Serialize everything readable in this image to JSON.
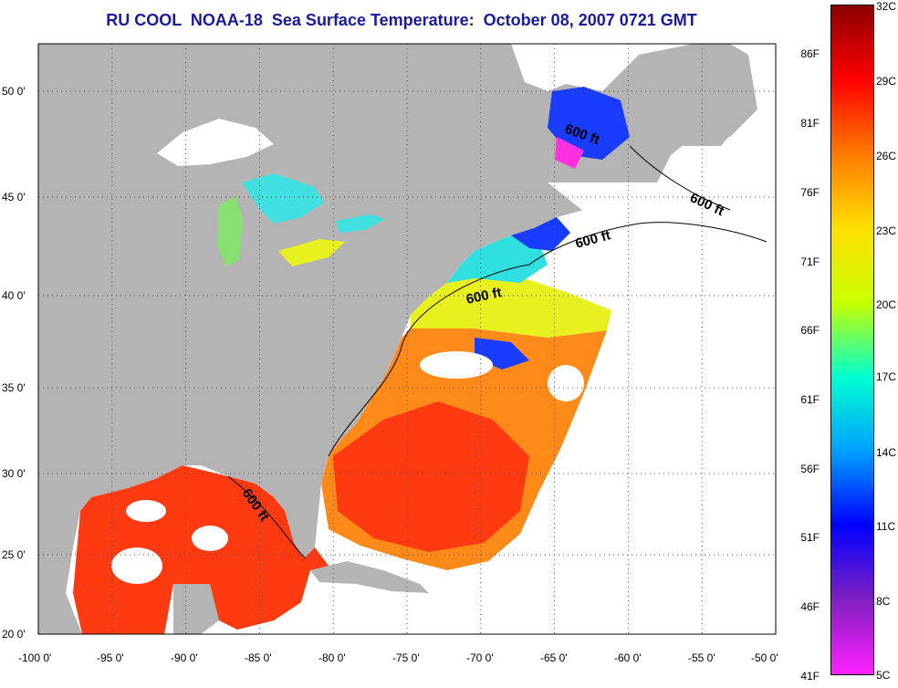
{
  "title": "RU COOL  NOAA-18  Sea Surface Temperature:  October 08, 2007 0721 GMT",
  "map": {
    "lon_ticks": [
      "-100 0'",
      "-95 0'",
      "-90 0'",
      "-85 0'",
      "-80 0'",
      "-75 0'",
      "-70 0'",
      "-65 0'",
      "-60 0'",
      "-55 0'",
      "-50 0'"
    ],
    "lat_ticks": [
      "50 0'",
      "45 0'",
      "40 0'",
      "35 0'",
      "30 0'",
      "25 0'",
      "20 0'"
    ],
    "contour_label": "600 ft",
    "colors": {
      "land": "#b4b4b4",
      "cloud": "#ffffff",
      "warm": "#ff3a10",
      "orange": "#ff8a1a",
      "cold": "#1a3cff",
      "cyan": "#30e0e0",
      "yellow": "#e8f020",
      "magenta": "#ff30e0"
    }
  },
  "colorbar": {
    "fahrenheit": [
      "86F",
      "81F",
      "76F",
      "71F",
      "66F",
      "61F",
      "56F",
      "51F",
      "46F",
      "41F"
    ],
    "celsius": [
      "32C",
      "29C",
      "26C",
      "23C",
      "20C",
      "17C",
      "14C",
      "11C",
      "8C",
      "5C"
    ],
    "colors": [
      "#8b0000",
      "#ff0000",
      "#ff7a00",
      "#ffe000",
      "#c8ff00",
      "#00ffd0",
      "#00a0ff",
      "#0000ff",
      "#8020c0",
      "#ff20ff"
    ]
  }
}
